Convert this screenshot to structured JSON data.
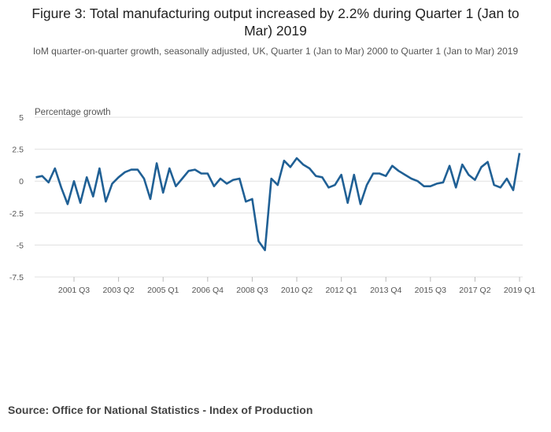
{
  "chart_data": {
    "type": "line",
    "title": "Figure 3: Total manufacturing output increased by 2.2% during Quarter 1 (Jan to Mar) 2019",
    "subtitle": "IoM quarter-on-quarter growth, seasonally adjusted, UK, Quarter 1 (Jan to Mar) 2000 to Quarter 1 (Jan to Mar) 2019",
    "ylabel": "Percentage growth",
    "xlabel": "",
    "ylim": [
      -7.5,
      5
    ],
    "yticks": [
      5,
      2.5,
      0,
      -2.5,
      -5,
      -7.5
    ],
    "ytick_labels": [
      "5",
      "2.5",
      "0",
      "-2.5",
      "-5",
      "-7.5"
    ],
    "x_start": "2000 Q1",
    "xticks": [
      {
        "index": 6,
        "label": "2001 Q3"
      },
      {
        "index": 13,
        "label": "2003 Q2"
      },
      {
        "index": 20,
        "label": "2005 Q1"
      },
      {
        "index": 27,
        "label": "2006 Q4"
      },
      {
        "index": 34,
        "label": "2008 Q3"
      },
      {
        "index": 41,
        "label": "2010 Q2"
      },
      {
        "index": 48,
        "label": "2012 Q1"
      },
      {
        "index": 55,
        "label": "2013 Q4"
      },
      {
        "index": 62,
        "label": "2015 Q3"
      },
      {
        "index": 69,
        "label": "2017 Q2"
      },
      {
        "index": 76,
        "label": "2019 Q1"
      }
    ],
    "grid": true,
    "series": [
      {
        "name": "Manufacturing",
        "color": "#206095",
        "values": [
          0.3,
          0.4,
          -0.1,
          1.0,
          -0.5,
          -1.8,
          0.0,
          -1.7,
          0.3,
          -1.2,
          1.0,
          -1.6,
          -0.2,
          0.3,
          0.7,
          0.9,
          0.9,
          0.2,
          -1.4,
          1.4,
          -0.9,
          1.0,
          -0.4,
          0.2,
          0.8,
          0.9,
          0.6,
          0.6,
          -0.4,
          0.2,
          -0.2,
          0.1,
          0.2,
          -1.6,
          -1.4,
          -4.7,
          -5.4,
          0.2,
          -0.3,
          1.6,
          1.1,
          1.8,
          1.3,
          1.0,
          0.4,
          0.3,
          -0.5,
          -0.3,
          0.5,
          -1.7,
          0.5,
          -1.8,
          -0.3,
          0.6,
          0.6,
          0.4,
          1.2,
          0.8,
          0.5,
          0.2,
          0.0,
          -0.4,
          -0.4,
          -0.2,
          -0.1,
          1.2,
          -0.5,
          1.3,
          0.5,
          0.1,
          1.1,
          1.5,
          -0.3,
          -0.5,
          0.2,
          -0.7,
          2.2
        ]
      }
    ]
  },
  "source": "Source: Office for National Statistics - Index of Production"
}
